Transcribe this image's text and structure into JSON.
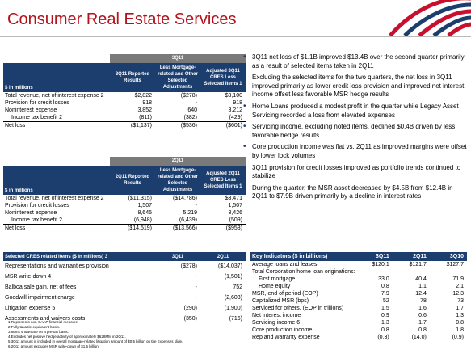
{
  "page": {
    "title": "Consumer Real Estate Services"
  },
  "table1": {
    "group": "3Q11",
    "headers": [
      "$ in millions",
      "3Q11 Reported Results",
      "Less Mortgage-related and Other Selected Adjustments",
      "Adjusted 3Q11 CRES Less Selected Items 1"
    ],
    "rows": [
      {
        "label": "Total revenue, net of interest expense 2",
        "c1": "$2,822",
        "c2": "($278)",
        "c3": "$3,100"
      },
      {
        "label": "Provision for credit losses",
        "c1": "918",
        "c2": "-",
        "c3": "918"
      },
      {
        "label": "Noninterest expense",
        "c1": "3,852",
        "c2": "640",
        "c3": "3,212"
      },
      {
        "label": "Income tax benefit 2",
        "c1": "(811)",
        "c2": "(382)",
        "c3": "(429)"
      },
      {
        "label": "Net loss",
        "c1": "($1,137)",
        "c2": "($536)",
        "c3": "($601)"
      }
    ]
  },
  "table2": {
    "group": "2Q11",
    "headers": [
      "$ in millions",
      "2Q11 Reported Results",
      "Less Mortgage-related and Other Selected Adjustments",
      "Adjusted 2Q11 CRES Less Selected Items 1"
    ],
    "rows": [
      {
        "label": "Total revenue, net of interest expense 2",
        "c1": "($11,315)",
        "c2": "($14,786)",
        "c3": "$3,471"
      },
      {
        "label": "Provision for credit losses",
        "c1": "1,507",
        "c2": "-",
        "c3": "1,507"
      },
      {
        "label": "Noninterest expense",
        "c1": "8,645",
        "c2": "5,219",
        "c3": "3,426"
      },
      {
        "label": "Income tax benefit 2",
        "c1": "(6,948)",
        "c2": "(6,439)",
        "c3": "(509)"
      },
      {
        "label": "Net loss",
        "c1": "($14,519)",
        "c2": "($13,566)",
        "c3": "($953)"
      }
    ]
  },
  "table3": {
    "headers": [
      "Selected CRES related items ($ in millions) 3",
      "3Q11",
      "2Q11"
    ],
    "rows": [
      {
        "label": "Representations and warranties provision",
        "c1": "($278)",
        "c2": "($14,037)"
      },
      {
        "label": "MSR write-down 4",
        "c1": "-",
        "c2": "(1,501)"
      },
      {
        "label": "Balboa sale gain, net of fees",
        "c1": "-",
        "c2": "752"
      },
      {
        "label": "Goodwill impairment charge",
        "c1": "-",
        "c2": "(2,603)"
      },
      {
        "label": "Litigation expense 5",
        "c1": "(290)",
        "c2": "(1,900)"
      },
      {
        "label": "Assessments and waivers costs",
        "c1": "(350)",
        "c2": "(716)"
      }
    ]
  },
  "footnotes": [
    "1 Represents non-GAAP financial measure.",
    "2 Fully taxable-equivalent basis.",
    "3 Items shown are on a pre-tax basis.",
    "4 Excludes net positive hedge activity of approximately $628MM in 2Q11.",
    "5 3Q11 amount is included in overall mortgage-related litigation amount of $0.5 billion on the Expenses slide.",
    "6 2Q11 amount excludes MSR write-down of $1.5 billion."
  ],
  "bullets": [
    "3Q11 net loss of $1.1B improved $13.4B over the second quarter primarily as a result of selected items taken in 2Q11",
    "Excluding the selected items for the two quarters, the net loss in 3Q11 improved primarily as lower credit loss provision and improved net interest income offset less favorable MSR hedge results",
    "Home Loans produced a modest profit in the quarter while Legacy Asset Servicing recorded a loss from elevated expenses",
    "Servicing income, excluding noted items, declined $0.4B driven by less favorable hedge results",
    "Core production income was flat vs. 2Q11 as improved margins were offset by lower lock volumes",
    "3Q11 provision for credit losses improved as portfolio trends continued to stabilize",
    "During the quarter, the MSR asset decreased by $4.5B from $12.4B in 2Q11 to $7.9B driven primarily by a decline in interest rates"
  ],
  "key_indicators": {
    "headers": [
      "Key Indicators ($ in billions)",
      "3Q11",
      "2Q11",
      "3Q10"
    ],
    "rows": [
      {
        "label": "Average loans and leases",
        "c1": "$120.1",
        "c2": "$121.7",
        "c3": "$127.7",
        "indent": false
      },
      {
        "label": "Total Corporation home loan originations:",
        "c1": "",
        "c2": "",
        "c3": "",
        "indent": false
      },
      {
        "label": "First mortgage",
        "c1": "33.0",
        "c2": "40.4",
        "c3": "71.9",
        "indent": true
      },
      {
        "label": "Home equity",
        "c1": "0.8",
        "c2": "1.1",
        "c3": "2.1",
        "indent": true
      },
      {
        "label": "MSR, end of period (EOP)",
        "c1": "7.9",
        "c2": "12.4",
        "c3": "12.3",
        "indent": false
      },
      {
        "label": "Capitalized MSR (bps)",
        "c1": "52",
        "c2": "78",
        "c3": "73",
        "indent": false
      },
      {
        "label": "Serviced for others, (EOP in trillions)",
        "c1": "1.5",
        "c2": "1.6",
        "c3": "1.7",
        "indent": false
      },
      {
        "label": "Net interest income",
        "c1": "0.9",
        "c2": "0.6",
        "c3": "1.3",
        "indent": false
      },
      {
        "label": "Servicing income 6",
        "c1": "1.3",
        "c2": "1.7",
        "c3": "0.8",
        "indent": false
      },
      {
        "label": "Core production income",
        "c1": "0.8",
        "c2": "0.8",
        "c3": "1.8",
        "indent": false
      },
      {
        "label": "Rep and warranty expense",
        "c1": "(0.3)",
        "c2": "(14.0)",
        "c3": "(0.9)",
        "indent": false
      }
    ]
  },
  "colors": {
    "title": "#b5121b",
    "header_navy": "#1c3e6e",
    "header_gray": "#7a7a7a",
    "logo_red": "#c8102e",
    "logo_blue": "#1c3e6e"
  },
  "icons": {
    "logo": "flag-logo-icon",
    "bullet": "bullet-icon"
  }
}
